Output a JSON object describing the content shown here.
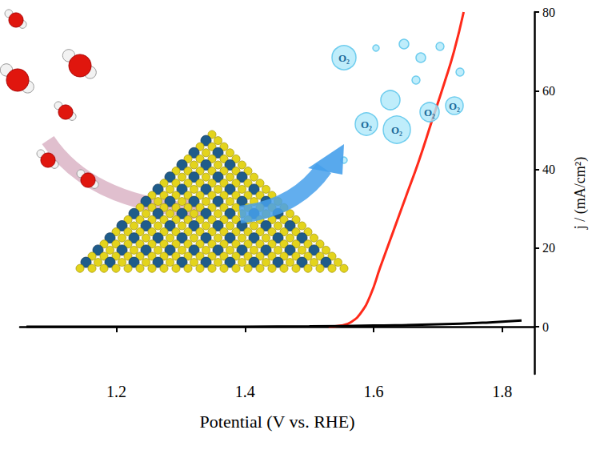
{
  "chart_data": {
    "type": "line",
    "x_label": "Potential (V vs. RHE)",
    "y_label": "j / (mA/cm²)",
    "annotations": [
      "O₂"
    ],
    "xlim": [
      1.05,
      1.85
    ],
    "xticks": [
      1.2,
      1.4,
      1.6,
      1.8
    ],
    "ylim": [
      -12,
      80
    ],
    "yticks": [
      0,
      20,
      40,
      60,
      80
    ],
    "grid": false,
    "series": [
      {
        "color": "#ff2a1a",
        "x": [
          1.53,
          1.55,
          1.565,
          1.58,
          1.595,
          1.61,
          1.63,
          1.65,
          1.67,
          1.69,
          1.71,
          1.725,
          1.74
        ],
        "values": [
          0,
          0.3,
          1.2,
          3.5,
          8,
          15,
          24,
          33,
          42,
          52,
          62,
          70,
          80
        ]
      },
      {
        "color": "#000000",
        "x": [
          1.06,
          1.3,
          1.5,
          1.6,
          1.7,
          1.78,
          1.83
        ],
        "values": [
          0,
          0,
          0.1,
          0.3,
          0.6,
          1.1,
          1.6
        ]
      }
    ]
  }
}
